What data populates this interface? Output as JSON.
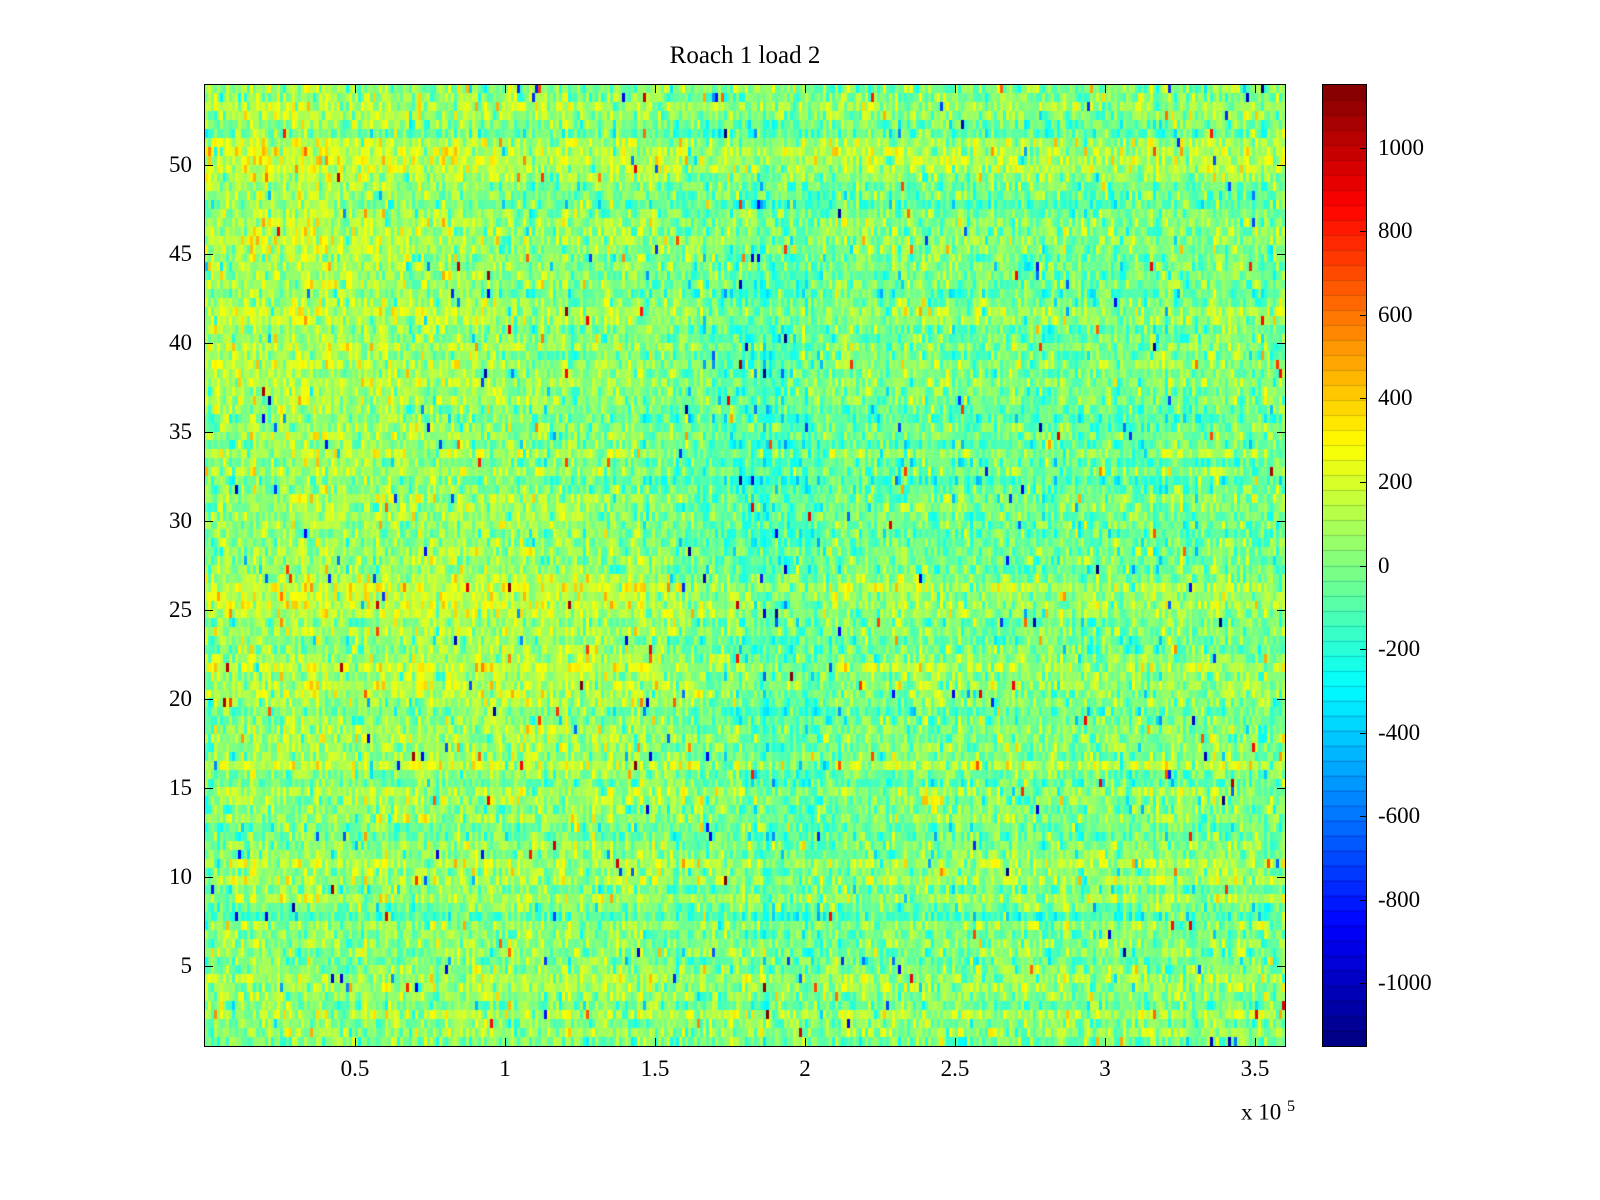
{
  "colors": {
    "background": "#ffffff",
    "axis": "#000000"
  },
  "chart_data": {
    "type": "heatmap",
    "title": "Roach 1 load 2",
    "xlabel": "",
    "ylabel": "",
    "legend": "none",
    "grid": false,
    "x_axis": {
      "range": [
        0,
        360000
      ],
      "tick_values": [
        50000,
        100000,
        150000,
        200000,
        250000,
        300000,
        350000
      ],
      "tick_labels": [
        "0.5",
        "1",
        "1.5",
        "2",
        "2.5",
        "3",
        "3.5"
      ],
      "exponent_label": "x 10",
      "exponent": "5"
    },
    "y_axis": {
      "range": [
        0.5,
        54.5
      ],
      "tick_values": [
        5,
        10,
        15,
        20,
        25,
        30,
        35,
        40,
        45,
        50
      ],
      "tick_labels": [
        "5",
        "10",
        "15",
        "20",
        "25",
        "30",
        "35",
        "40",
        "45",
        "50"
      ]
    },
    "colorbar": {
      "range": [
        -1150,
        1150
      ],
      "tick_values": [
        1000,
        800,
        600,
        400,
        200,
        0,
        -200,
        -400,
        -600,
        -800,
        -1000
      ],
      "tick_labels": [
        "1000",
        "800",
        "600",
        "400",
        "200",
        "0",
        "-200",
        "-400",
        "-600",
        "-800",
        "-1000"
      ],
      "colormap": "jet",
      "segments": 64,
      "position": "right"
    },
    "values_summary": {
      "description": "Dense random noise field of thin vertical cells, mean near 0 (green), typical spread about +/-250 (yellow to cyan); warmer yellow/orange patches concentrated toward the upper-left; cooler cyan/blue vertical band near x = 1.8e5 to 2.0e5; rare isolated spikes reaching about +/-1100 (red / dark blue specks).",
      "grid_rows": 108,
      "grid_cols": 360
    },
    "generation": {
      "seed": 1337,
      "rows": 108,
      "cols": 360,
      "base_mean": 20,
      "noise_std": 130,
      "row_band_std": 45,
      "col_band_std": 25,
      "spike_prob": 0.012,
      "spike_min": 350,
      "spike_spread": 650,
      "vmin": -1150,
      "vmax": 1150,
      "blobs": [
        {
          "x": 0.06,
          "y": 0.82,
          "sx": 0.1,
          "sy": 0.22,
          "amp": 90
        },
        {
          "x": 0.18,
          "y": 0.6,
          "sx": 0.12,
          "sy": 0.25,
          "amp": 45
        },
        {
          "x": 0.3,
          "y": 0.42,
          "sx": 0.07,
          "sy": 0.08,
          "amp": 60
        },
        {
          "x": 0.515,
          "y": 0.62,
          "sx": 0.035,
          "sy": 0.22,
          "amp": -120
        },
        {
          "x": 0.56,
          "y": 0.25,
          "sx": 0.05,
          "sy": 0.12,
          "amp": -70
        },
        {
          "x": 0.78,
          "y": 0.55,
          "sx": 0.12,
          "sy": 0.35,
          "amp": -35
        }
      ]
    }
  }
}
